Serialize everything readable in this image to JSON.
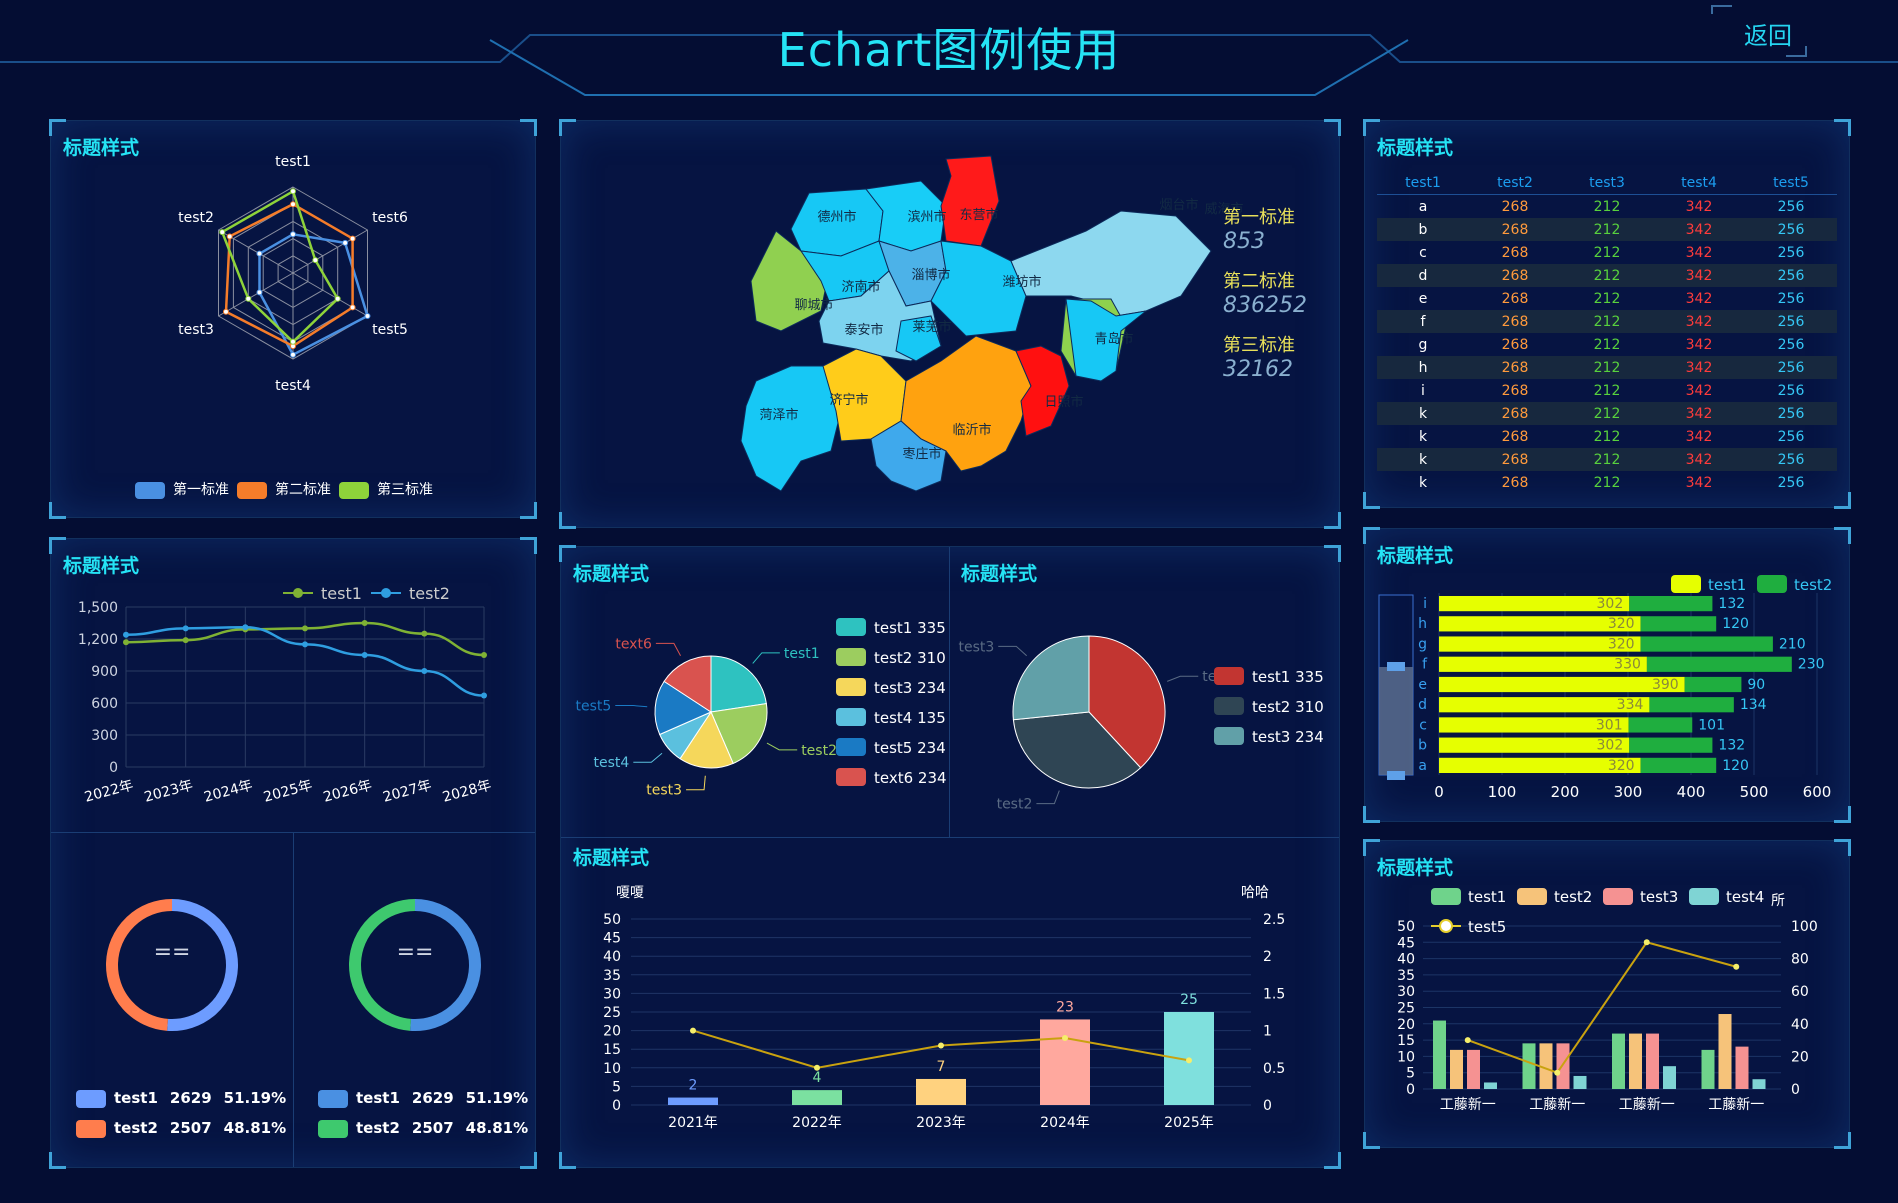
{
  "header": {
    "title": "Echart图例使用",
    "back_label": "返回"
  },
  "colors": {
    "accent": "#25e3f5",
    "panel_bg": "#061442",
    "page_bg": "#040d33"
  },
  "panels": {
    "radar_title": "标题样式",
    "line_title": "标题样式",
    "pie1_title": "标题样式",
    "pie2_title": "标题样式",
    "bar_title": "标题样式",
    "table_title": "标题样式",
    "hbar_title": "标题样式",
    "combo_title": "标题样式"
  },
  "radar": {
    "indicators": [
      "test1",
      "test6",
      "test5",
      "test4",
      "test3",
      "test2"
    ],
    "legend": [
      {
        "name": "第一标准",
        "color": "#4a90e2"
      },
      {
        "name": "第二标准",
        "color": "#f57c2a"
      },
      {
        "name": "第三标准",
        "color": "#8ed33a"
      }
    ]
  },
  "line": {
    "legend": [
      {
        "name": "test1",
        "color": "#7fb234"
      },
      {
        "name": "test2",
        "color": "#2f9ee0"
      }
    ],
    "yticks": [
      "0",
      "300",
      "600",
      "900",
      "1,200",
      "1,500"
    ],
    "xticks": [
      "2022年",
      "2023年",
      "2024年",
      "2025年",
      "2026年",
      "2027年",
      "2028年"
    ]
  },
  "donuts": [
    {
      "center": "==",
      "items": [
        {
          "name": "test1",
          "value": "2629",
          "pct": "51.19%",
          "color": "#6d9cff"
        },
        {
          "name": "test2",
          "value": "2507",
          "pct": "48.81%",
          "color": "#ff7d4d"
        }
      ]
    },
    {
      "center": "==",
      "items": [
        {
          "name": "test1",
          "value": "2629",
          "pct": "51.19%",
          "color": "#4a90e2"
        },
        {
          "name": "test2",
          "value": "2507",
          "pct": "48.81%",
          "color": "#3ec96e"
        }
      ]
    }
  ],
  "map": {
    "legend": [
      {
        "name": "第一标准",
        "value": "853"
      },
      {
        "name": "第二标准",
        "value": "836252"
      },
      {
        "name": "第三标准",
        "value": "32162"
      }
    ],
    "cities": [
      "德州市",
      "滨州市",
      "东营市",
      "烟台市",
      "威海市",
      "聊城市",
      "济南市",
      "淄博市",
      "潍坊市",
      "泰安市",
      "莱芜市",
      "青岛市",
      "菏泽市",
      "济宁市",
      "临沂市",
      "日照市",
      "枣庄市"
    ]
  },
  "pie1": {
    "labels": [
      "test1",
      "test2",
      "test3",
      "test4",
      "test5",
      "text6"
    ],
    "legend": [
      {
        "name": "test1",
        "value": "335",
        "color": "#2ec2c0"
      },
      {
        "name": "test2",
        "value": "310",
        "color": "#9ccd5f"
      },
      {
        "name": "test3",
        "value": "234",
        "color": "#f5d75b"
      },
      {
        "name": "test4",
        "value": "135",
        "color": "#5bc0de"
      },
      {
        "name": "test5",
        "value": "234",
        "color": "#1a7ac4"
      },
      {
        "name": "text6",
        "value": "234",
        "color": "#d9534f"
      }
    ]
  },
  "pie2": {
    "labels": [
      "test1",
      "test2",
      "test3"
    ],
    "legend": [
      {
        "name": "test1",
        "value": "335",
        "color": "#c23531"
      },
      {
        "name": "test2",
        "value": "310",
        "color": "#2f4554"
      },
      {
        "name": "test3",
        "value": "234",
        "color": "#61a0a8"
      }
    ]
  },
  "bar": {
    "left_axis_name": "嗄嗄",
    "right_axis_name": "哈哈",
    "yticks_left": [
      "0",
      "5",
      "10",
      "15",
      "20",
      "25",
      "30",
      "35",
      "40",
      "45",
      "50"
    ],
    "yticks_right": [
      "0",
      "0.5",
      "1",
      "1.5",
      "2",
      "2.5"
    ]
  },
  "table": {
    "headers": [
      "test1",
      "test2",
      "test3",
      "test4",
      "test5"
    ],
    "rows": [
      [
        "a",
        "268",
        "212",
        "342",
        "256"
      ],
      [
        "b",
        "268",
        "212",
        "342",
        "256"
      ],
      [
        "c",
        "268",
        "212",
        "342",
        "256"
      ],
      [
        "d",
        "268",
        "212",
        "342",
        "256"
      ],
      [
        "e",
        "268",
        "212",
        "342",
        "256"
      ],
      [
        "f",
        "268",
        "212",
        "342",
        "256"
      ],
      [
        "g",
        "268",
        "212",
        "342",
        "256"
      ],
      [
        "h",
        "268",
        "212",
        "342",
        "256"
      ],
      [
        "i",
        "268",
        "212",
        "342",
        "256"
      ],
      [
        "k",
        "268",
        "212",
        "342",
        "256"
      ],
      [
        "k",
        "268",
        "212",
        "342",
        "256"
      ],
      [
        "k",
        "268",
        "212",
        "342",
        "256"
      ],
      [
        "k",
        "268",
        "212",
        "342",
        "256"
      ]
    ]
  },
  "hbar": {
    "legend": [
      {
        "name": "test1",
        "color": "#e6ff00"
      },
      {
        "name": "test2",
        "color": "#1fae3f"
      }
    ],
    "xticks": [
      "0",
      "100",
      "200",
      "300",
      "400",
      "500",
      "600"
    ]
  },
  "combo": {
    "legend": [
      {
        "name": "test1",
        "color": "#6fd38b"
      },
      {
        "name": "test2",
        "color": "#f6c37a"
      },
      {
        "name": "test3",
        "color": "#f59292"
      },
      {
        "name": "test4",
        "color": "#7fd4d4"
      },
      {
        "name": "test5",
        "color": "#e6cf2c"
      }
    ],
    "right_axis_name": "所",
    "yticks_left": [
      "0",
      "5",
      "10",
      "15",
      "20",
      "25",
      "30",
      "35",
      "40",
      "45",
      "50"
    ],
    "yticks_right": [
      "0",
      "20",
      "40",
      "60",
      "80",
      "100"
    ]
  },
  "chart_data": [
    {
      "type": "radar",
      "indicators": [
        "test1",
        "test6",
        "test5",
        "test4",
        "test3",
        "test2"
      ],
      "max": 100,
      "series": [
        {
          "name": "第一标准",
          "values": [
            45,
            70,
            100,
            95,
            45,
            45
          ]
        },
        {
          "name": "第二标准",
          "values": [
            80,
            80,
            80,
            85,
            90,
            85
          ]
        },
        {
          "name": "第三标准",
          "values": [
            95,
            30,
            60,
            80,
            60,
            95
          ]
        }
      ]
    },
    {
      "type": "line",
      "x": [
        "2022年",
        "2023年",
        "2024年",
        "2025年",
        "2026年",
        "2027年",
        "2028年"
      ],
      "ylim": [
        0,
        1500
      ],
      "series": [
        {
          "name": "test1",
          "values": [
            1170,
            1190,
            1290,
            1300,
            1350,
            1250,
            1050
          ]
        },
        {
          "name": "test2",
          "values": [
            1240,
            1300,
            1310,
            1150,
            1050,
            900,
            670
          ]
        }
      ]
    },
    {
      "type": "pie",
      "categories": [
        "test1",
        "test2"
      ],
      "values": [
        2629,
        2507
      ]
    },
    {
      "type": "pie",
      "categories": [
        "test1",
        "test2"
      ],
      "values": [
        2629,
        2507
      ]
    },
    {
      "type": "pie",
      "categories": [
        "test1",
        "test2",
        "test3",
        "test4",
        "test5",
        "text6"
      ],
      "values": [
        335,
        310,
        234,
        135,
        234,
        234
      ]
    },
    {
      "type": "pie",
      "categories": [
        "test1",
        "test2",
        "test3"
      ],
      "values": [
        335,
        310,
        234
      ]
    },
    {
      "type": "bar",
      "categories": [
        "2021年",
        "2022年",
        "2023年",
        "2024年",
        "2025年"
      ],
      "values": [
        2,
        4,
        7,
        23,
        25
      ],
      "bar_colors": [
        "#6d9cff",
        "#7be0a0",
        "#ffd27f",
        "#ffa89e",
        "#7fe0dd"
      ],
      "line_values": [
        1,
        0.5,
        0.8,
        0.9,
        0.6
      ],
      "ylim": [
        0,
        50
      ],
      "y2lim": [
        0,
        2.5
      ]
    },
    {
      "type": "bar",
      "orientation": "horizontal",
      "categories": [
        "a",
        "b",
        "c",
        "d",
        "e",
        "f",
        "g",
        "h",
        "i"
      ],
      "series": [
        {
          "name": "test1",
          "values": [
            320,
            302,
            301,
            334,
            390,
            330,
            320,
            320,
            302
          ]
        },
        {
          "name": "test2",
          "values": [
            120,
            132,
            101,
            134,
            90,
            230,
            210,
            120,
            132
          ]
        }
      ],
      "xlim": [
        0,
        600
      ]
    },
    {
      "type": "bar",
      "categories": [
        "工藤新一",
        "工藤新一",
        "工藤新一",
        "工藤新一"
      ],
      "series": [
        {
          "name": "test1",
          "values": [
            21,
            14,
            17,
            12
          ]
        },
        {
          "name": "test2",
          "values": [
            12,
            14,
            17,
            23
          ]
        },
        {
          "name": "test3",
          "values": [
            12,
            14,
            17,
            13
          ]
        },
        {
          "name": "test4",
          "values": [
            2,
            4,
            7,
            3
          ]
        }
      ],
      "line_series": {
        "name": "test5",
        "values": [
          30,
          10,
          90,
          75
        ]
      },
      "ylim": [
        0,
        50
      ],
      "y2lim": [
        0,
        100
      ]
    }
  ]
}
